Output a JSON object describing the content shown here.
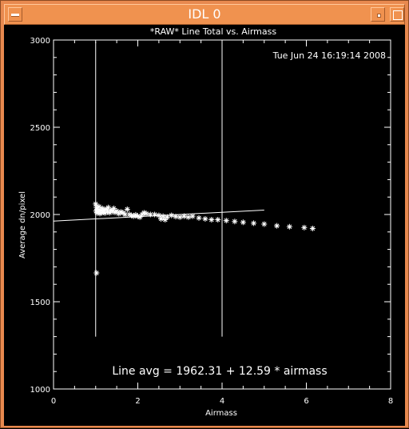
{
  "window": {
    "title": "IDL 0"
  },
  "chart_data": {
    "type": "scatter",
    "title": "*RAW* Line Total vs. Airmass",
    "timestamp": "Tue Jun 24 16:19:14 2008",
    "xlabel": "Airmass",
    "ylabel": "Average dn/pixel",
    "xlim": [
      0,
      8
    ],
    "ylim": [
      1000,
      3000
    ],
    "x_ticks": [
      0,
      2,
      4,
      6,
      8
    ],
    "y_ticks": [
      1000,
      1500,
      2000,
      2500,
      3000
    ],
    "x_tick_labels": [
      "0",
      "2",
      "4",
      "6",
      "8"
    ],
    "y_tick_labels": [
      "1000",
      "1500",
      "2000",
      "2500",
      "3000"
    ],
    "vertical_lines": [
      1.0,
      4.0
    ],
    "vertical_line_range": [
      1300,
      2990
    ],
    "fit": {
      "intercept": 1962.31,
      "slope": 12.59,
      "x_range": [
        0,
        5
      ]
    },
    "fit_label": "Line avg = 1962.31 + 12.59 * airmass",
    "color": "#ffffff",
    "points": [
      [
        1.0,
        2060
      ],
      [
        1.01,
        2020
      ],
      [
        1.02,
        2040
      ],
      [
        1.03,
        2010
      ],
      [
        1.04,
        2030
      ],
      [
        1.06,
        2015
      ],
      [
        1.08,
        2045
      ],
      [
        1.1,
        2005
      ],
      [
        1.12,
        2025
      ],
      [
        1.14,
        2010
      ],
      [
        1.16,
        2035
      ],
      [
        1.18,
        2012
      ],
      [
        1.2,
        2022
      ],
      [
        1.22,
        2008
      ],
      [
        1.25,
        2030
      ],
      [
        1.28,
        2015
      ],
      [
        1.3,
        2040
      ],
      [
        1.33,
        2010
      ],
      [
        1.36,
        2025
      ],
      [
        1.4,
        2018
      ],
      [
        1.43,
        2035
      ],
      [
        1.46,
        2012
      ],
      [
        1.5,
        2020
      ],
      [
        1.55,
        2005
      ],
      [
        1.6,
        2015
      ],
      [
        1.65,
        2010
      ],
      [
        1.7,
        2000
      ],
      [
        1.75,
        2030
      ],
      [
        1.8,
        2000
      ],
      [
        1.85,
        1995
      ],
      [
        1.9,
        1990
      ],
      [
        1.95,
        1998
      ],
      [
        2.0,
        1990
      ],
      [
        2.05,
        1985
      ],
      [
        2.1,
        2000
      ],
      [
        2.15,
        2010
      ],
      [
        2.2,
        2005
      ],
      [
        2.3,
        2000
      ],
      [
        2.4,
        2000
      ],
      [
        2.5,
        1995
      ],
      [
        2.55,
        1975
      ],
      [
        2.6,
        1990
      ],
      [
        2.65,
        1970
      ],
      [
        2.7,
        1985
      ],
      [
        2.8,
        1995
      ],
      [
        2.9,
        1988
      ],
      [
        3.0,
        1985
      ],
      [
        3.1,
        1990
      ],
      [
        3.2,
        1985
      ],
      [
        3.3,
        1990
      ],
      [
        3.45,
        1980
      ],
      [
        3.6,
        1975
      ],
      [
        3.75,
        1970
      ],
      [
        3.9,
        1970
      ],
      [
        4.1,
        1965
      ],
      [
        4.3,
        1960
      ],
      [
        4.5,
        1955
      ],
      [
        4.75,
        1950
      ],
      [
        5.0,
        1945
      ],
      [
        5.3,
        1935
      ],
      [
        5.6,
        1930
      ],
      [
        5.95,
        1925
      ],
      [
        6.15,
        1920
      ],
      [
        1.02,
        1665
      ]
    ]
  }
}
